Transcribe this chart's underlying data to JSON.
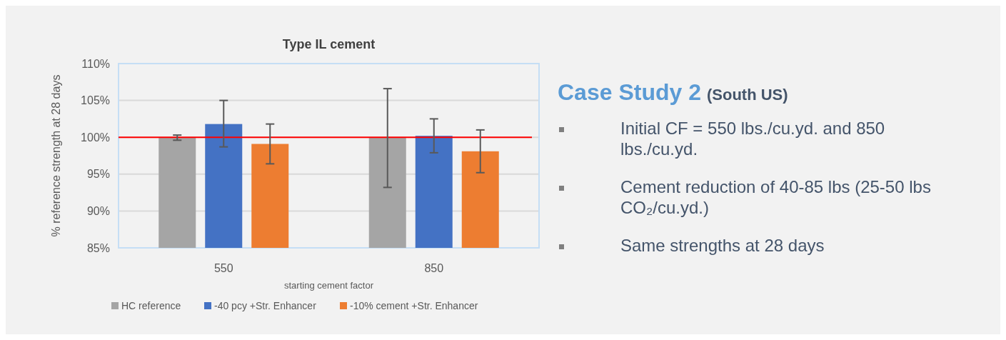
{
  "chart_data": [
    {
      "type": "bar",
      "title": "Type IL cement",
      "xlabel": "starting cement factor",
      "ylabel": "% reference strength at 28 days",
      "categories": [
        "550",
        "850"
      ],
      "series": [
        {
          "name": "HC reference",
          "color": "#a5a5a5",
          "values": [
            100.0,
            100.0
          ],
          "errors": [
            [
              99.6,
              100.3
            ],
            [
              93.2,
              106.6
            ]
          ]
        },
        {
          "name": "-40 pcy +Str. Enhancer",
          "color": "#4472c4",
          "values": [
            101.8,
            100.2
          ],
          "errors": [
            [
              98.7,
              105.0
            ],
            [
              97.9,
              102.5
            ]
          ]
        },
        {
          "name": "-10% cement +Str. Enhancer",
          "color": "#ed7d31",
          "values": [
            99.1,
            98.1
          ],
          "errors": [
            [
              96.4,
              101.8
            ],
            [
              95.2,
              101.0
            ]
          ]
        }
      ],
      "ylim": [
        85,
        110
      ],
      "yticks": [
        {
          "value": 85,
          "label": "85%"
        },
        {
          "value": 90,
          "label": "90%"
        },
        {
          "value": 95,
          "label": "95%"
        },
        {
          "value": 100,
          "label": "100%"
        },
        {
          "value": 105,
          "label": "105%"
        },
        {
          "value": 110,
          "label": "110%"
        }
      ],
      "grid": "y",
      "legend": "bottom",
      "ref_lines": [
        {
          "axis": "y",
          "value": 100,
          "color": "#ff0000"
        }
      ]
    },
    {
      "type": "other",
      "title": "Case Study 2",
      "subtitle": "(South US)",
      "annotations": [
        "Initial CF = 550 lbs./cu.yd. and 850 lbs./cu.yd.",
        "Cement reduction of 40-85 lbs (25-50 lbs CO₂/cu.yd.)",
        "Same strengths at 28 days"
      ]
    }
  ]
}
